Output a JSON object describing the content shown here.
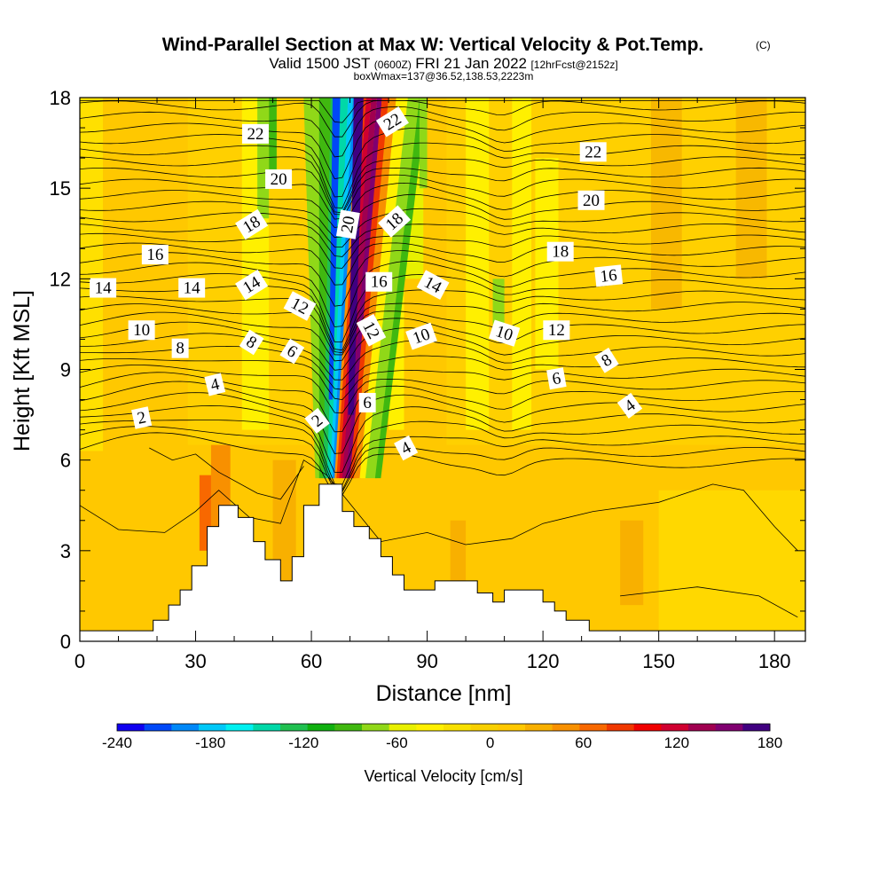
{
  "header": {
    "title": "Wind-Parallel Section at Max W: Vertical Velocity & Pot.Temp.",
    "title_mark": "(C)",
    "valid_prefix": "Valid 1500 JST",
    "valid_utc": "(0600Z)",
    "valid_date": "FRI 21 Jan 2022",
    "forecast": "[12hrFcst@2152z]",
    "box_info": "boxWmax=137@36.52,138.53,2223m"
  },
  "chart_data": {
    "type": "heatmap",
    "xlabel": "Distance [nm]",
    "ylabel": "Height [Kft MSL]",
    "xlim": [
      0,
      188
    ],
    "ylim": [
      0,
      18
    ],
    "x_ticks": [
      0,
      30,
      60,
      90,
      120,
      150,
      180
    ],
    "y_ticks": [
      0,
      3,
      6,
      9,
      12,
      15,
      18
    ],
    "colorbar": {
      "label": "Vertical Velocity [cm/s]",
      "range": [
        -240,
        180
      ],
      "tick_labels": [
        -240,
        -180,
        -120,
        -60,
        0,
        60,
        120,
        180
      ],
      "colors": [
        "#1000f0",
        "#0048f8",
        "#0088f8",
        "#00c8f8",
        "#00f0f0",
        "#00d8a8",
        "#20c050",
        "#10b010",
        "#40b810",
        "#90d818",
        "#e8f000",
        "#fff000",
        "#f8e000",
        "#f8d000",
        "#ffc800",
        "#f8b000",
        "#f89000",
        "#f86800",
        "#f03800",
        "#f00000",
        "#d00030",
        "#a00050",
        "#800070",
        "#400080"
      ]
    },
    "terrain": [
      [
        0,
        0.35
      ],
      [
        19,
        0.35
      ],
      [
        19,
        0.7
      ],
      [
        23,
        0.7
      ],
      [
        23,
        1.2
      ],
      [
        26,
        1.2
      ],
      [
        26,
        1.7
      ],
      [
        29,
        1.7
      ],
      [
        29,
        2.5
      ],
      [
        33,
        2.5
      ],
      [
        33,
        3.8
      ],
      [
        36,
        3.8
      ],
      [
        36,
        4.5
      ],
      [
        41,
        4.5
      ],
      [
        41,
        4.1
      ],
      [
        45,
        4.1
      ],
      [
        45,
        3.3
      ],
      [
        48,
        3.3
      ],
      [
        48,
        2.7
      ],
      [
        52,
        2.7
      ],
      [
        52,
        2.0
      ],
      [
        55,
        2.0
      ],
      [
        55,
        2.8
      ],
      [
        58,
        2.8
      ],
      [
        58,
        4.5
      ],
      [
        62,
        4.5
      ],
      [
        62,
        5.2
      ],
      [
        68,
        5.2
      ],
      [
        68,
        4.3
      ],
      [
        71,
        4.3
      ],
      [
        71,
        3.8
      ],
      [
        75,
        3.8
      ],
      [
        75,
        3.4
      ],
      [
        78,
        3.4
      ],
      [
        78,
        2.8
      ],
      [
        81,
        2.8
      ],
      [
        81,
        2.2
      ],
      [
        84,
        2.2
      ],
      [
        84,
        1.7
      ],
      [
        92,
        1.7
      ],
      [
        92,
        2.0
      ],
      [
        103,
        2.0
      ],
      [
        103,
        1.6
      ],
      [
        107,
        1.6
      ],
      [
        107,
        1.3
      ],
      [
        110,
        1.3
      ],
      [
        110,
        1.7
      ],
      [
        120,
        1.7
      ],
      [
        120,
        1.3
      ],
      [
        123,
        1.3
      ],
      [
        123,
        1.0
      ],
      [
        126,
        1.0
      ],
      [
        126,
        0.7
      ],
      [
        132,
        0.7
      ],
      [
        132,
        0.35
      ],
      [
        188,
        0.35
      ]
    ],
    "contour_labels": [
      {
        "v": "2",
        "x": 16,
        "y": 7.4,
        "r": -12
      },
      {
        "v": "4",
        "x": 35,
        "y": 8.5,
        "r": -14
      },
      {
        "v": "8",
        "x": 26,
        "y": 9.7,
        "r": 0
      },
      {
        "v": "10",
        "x": 16,
        "y": 10.3,
        "r": 0
      },
      {
        "v": "14",
        "x": 6,
        "y": 11.7,
        "r": 0
      },
      {
        "v": "14",
        "x": 29,
        "y": 11.7,
        "r": 0
      },
      {
        "v": "16",
        "x": 19.5,
        "y": 12.8,
        "r": 0
      },
      {
        "v": "22",
        "x": 45.5,
        "y": 16.8,
        "r": 0
      },
      {
        "v": "20",
        "x": 51.5,
        "y": 15.3,
        "r": 0
      },
      {
        "v": "18",
        "x": 44.5,
        "y": 13.8,
        "r": -32
      },
      {
        "v": "14",
        "x": 44.5,
        "y": 11.8,
        "r": -32
      },
      {
        "v": "12",
        "x": 57,
        "y": 11.1,
        "r": 28
      },
      {
        "v": "8",
        "x": 44.5,
        "y": 9.9,
        "r": 32
      },
      {
        "v": "6",
        "x": 55,
        "y": 9.6,
        "r": 32
      },
      {
        "v": "2",
        "x": 61.5,
        "y": 7.3,
        "r": -38
      },
      {
        "v": "20",
        "x": 69.5,
        "y": 13.8,
        "r": -80
      },
      {
        "v": "22",
        "x": 81,
        "y": 17.2,
        "r": -32
      },
      {
        "v": "18",
        "x": 81.5,
        "y": 13.9,
        "r": -42
      },
      {
        "v": "16",
        "x": 77.5,
        "y": 11.9,
        "r": 0
      },
      {
        "v": "14",
        "x": 91.5,
        "y": 11.8,
        "r": 28
      },
      {
        "v": "12",
        "x": 75.5,
        "y": 10.3,
        "r": 62
      },
      {
        "v": "10",
        "x": 88.5,
        "y": 10.1,
        "r": -20
      },
      {
        "v": "6",
        "x": 74.5,
        "y": 7.9,
        "r": 0
      },
      {
        "v": "4",
        "x": 84.5,
        "y": 6.4,
        "r": -28
      },
      {
        "v": "10",
        "x": 110,
        "y": 10.2,
        "r": 18
      },
      {
        "v": "12",
        "x": 123.5,
        "y": 10.3,
        "r": 0
      },
      {
        "v": "6",
        "x": 123.5,
        "y": 8.7,
        "r": -10
      },
      {
        "v": "8",
        "x": 136.5,
        "y": 9.3,
        "r": -32
      },
      {
        "v": "4",
        "x": 142.5,
        "y": 7.8,
        "r": -36
      },
      {
        "v": "18",
        "x": 124.5,
        "y": 12.9,
        "r": 0
      },
      {
        "v": "16",
        "x": 137,
        "y": 12.1,
        "r": -6
      },
      {
        "v": "20",
        "x": 132.5,
        "y": 14.6,
        "r": 0
      },
      {
        "v": "22",
        "x": 133,
        "y": 16.2,
        "r": 0
      }
    ]
  }
}
